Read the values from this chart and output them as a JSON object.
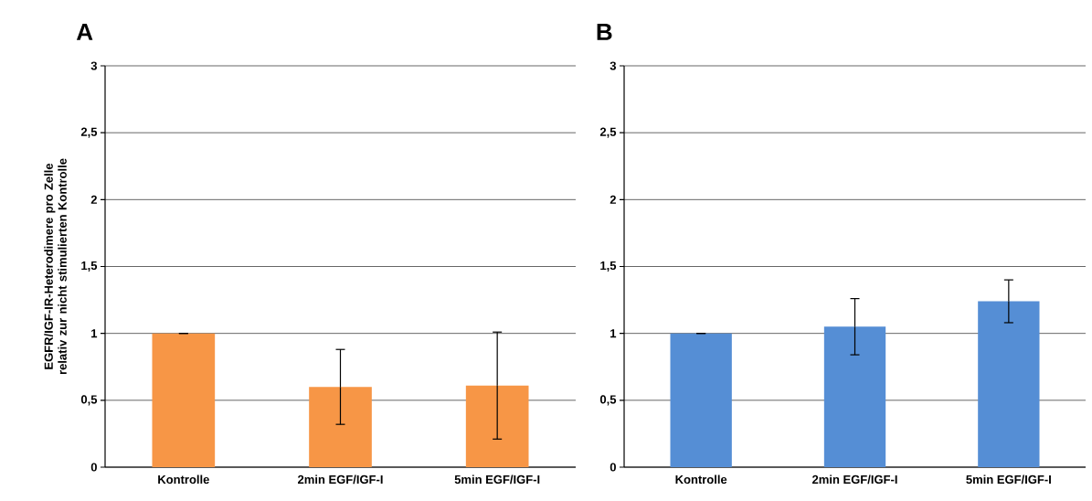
{
  "chart_data": [
    {
      "type": "bar",
      "title": "A",
      "ylabel": "EGFR/IGF-IR-Heterodimere pro Zelle relativ zur nicht stimulierten Kontrolle",
      "categories": [
        "Kontrolle",
        "2min EGF/IGF-I",
        "5min EGF/IGF-I"
      ],
      "values": [
        1,
        0.6,
        0.61
      ],
      "errors": [
        0,
        0.28,
        0.4
      ],
      "color": "#f79646",
      "ylim": [
        0,
        3
      ],
      "yticks": [
        0,
        {
          "value": 0.5,
          "label": "0,5"
        },
        1,
        {
          "value": 1.5,
          "label": "1,5"
        },
        2,
        {
          "value": 2.5,
          "label": "2,5"
        },
        3
      ],
      "grid": "y"
    },
    {
      "type": "bar",
      "title": "B",
      "categories": [
        "Kontrolle",
        "2min EGF/IGF-I",
        "5min EGF/IGF-I"
      ],
      "values": [
        1,
        1.05,
        1.24
      ],
      "errors": [
        0,
        0.21,
        0.16
      ],
      "color": "#558ed5",
      "ylim": [
        0,
        3
      ],
      "yticks": [
        0,
        {
          "value": 0.5,
          "label": "0,5"
        },
        1,
        {
          "value": 1.5,
          "label": "1,5"
        },
        2,
        {
          "value": 2.5,
          "label": "2,5"
        },
        3
      ],
      "grid": "y"
    }
  ]
}
